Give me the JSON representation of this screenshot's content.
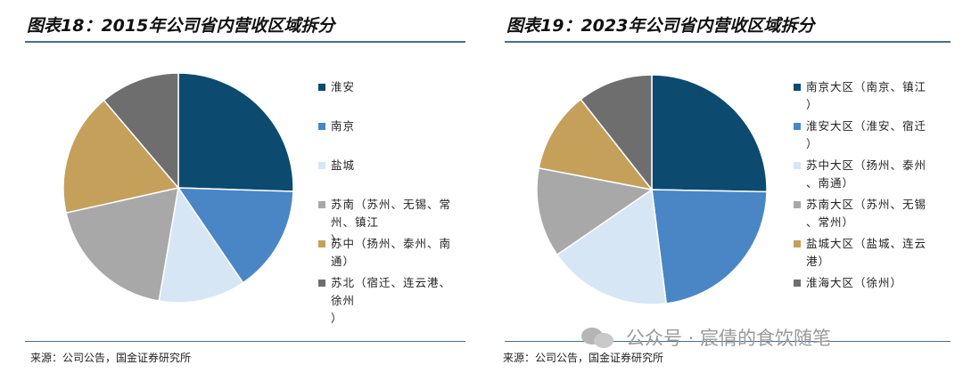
{
  "charts": [
    {
      "title": "图表18：2015年公司省内营收区域拆分",
      "source": "来源：公司公告，国金证券研究所"
    },
    {
      "title": "图表19：2023年公司省内营收区域拆分",
      "source": "来源：公司公告，国金证券研究所"
    }
  ],
  "watermark": "公众号 · 宸倩的食饮随笔",
  "chart_data": [
    {
      "type": "pie",
      "title": "图表18：2015年公司省内营收区域拆分",
      "start": "12 o'clock, clockwise",
      "slices": [
        {
          "label": "淮安",
          "value": 25.5,
          "color": "#0d4a70"
        },
        {
          "label": "南京",
          "value": 15.0,
          "color": "#4a86c5"
        },
        {
          "label": "盐城",
          "value": 12.2,
          "color": "#d7e6f4"
        },
        {
          "label": "苏南（苏州、无锡、常州、镇江）",
          "value": 18.8,
          "color": "#a8a8a8"
        },
        {
          "label": "苏中（扬州、泰州、南通）",
          "value": 17.3,
          "color": "#c4a05b"
        },
        {
          "label": "苏北（宿迁、连云港、徐州）",
          "value": 11.2,
          "color": "#6e6e6e"
        }
      ],
      "legend_position": "right"
    },
    {
      "type": "pie",
      "title": "图表19：2023年公司省内营收区域拆分",
      "start": "12 o'clock, clockwise",
      "slices": [
        {
          "label": "南京大区（南京、镇江）",
          "value": 25.3,
          "color": "#0d4a70"
        },
        {
          "label": "淮安大区（淮安、宿迁）",
          "value": 22.7,
          "color": "#4a86c5"
        },
        {
          "label": "苏中大区（扬州、泰州、南通）",
          "value": 17.4,
          "color": "#d7e6f4"
        },
        {
          "label": "苏南大区（苏州、无锡、常州）",
          "value": 12.6,
          "color": "#a8a8a8"
        },
        {
          "label": "盐城大区（盐城、连云港）",
          "value": 11.4,
          "color": "#c4a05b"
        },
        {
          "label": "淮海大区（徐州）",
          "value": 10.6,
          "color": "#6e6e6e"
        }
      ],
      "legend_position": "right"
    }
  ]
}
